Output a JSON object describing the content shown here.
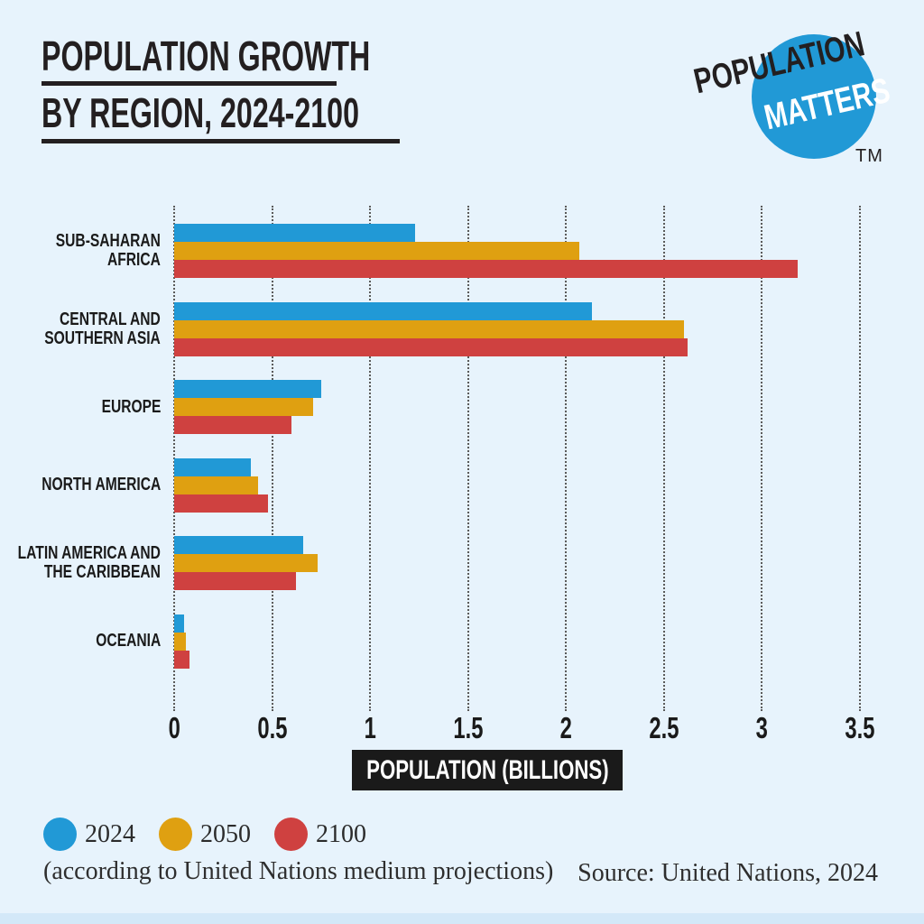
{
  "colors": {
    "page_background": "#e7f3fc",
    "bottom_strip": "#d3e8f8",
    "text_black": "#231f20",
    "gridline": "#5a5a5a",
    "xlabel_box_bg": "#1a1a1a",
    "xlabel_box_fg": "#ffffff"
  },
  "title": {
    "line1": "POPULATION GROWTH",
    "line2": "BY REGION, 2024-2100"
  },
  "logo": {
    "word1": "POPULATION",
    "word2": "MATTERS",
    "tm": "TM",
    "circle_color": "#2199d6",
    "word1_color": "#231f20",
    "word2_color": "#ffffff"
  },
  "chart_data": {
    "type": "bar",
    "orientation": "horizontal",
    "title": "POPULATION GROWTH BY REGION, 2024-2100",
    "xlabel": "POPULATION (BILLIONS)",
    "xlim": [
      0,
      3.5
    ],
    "xticks": [
      "0",
      "0.5",
      "1",
      "1.5",
      "2",
      "2.5",
      "3",
      "3.5"
    ],
    "grid": "vertical-dotted",
    "legend_position": "bottom-left",
    "categories": [
      "SUB-SAHARAN AFRICA",
      "CENTRAL AND SOUTHERN ASIA",
      "EUROPE",
      "NORTH AMERICA",
      "LATIN AMERICA AND THE CARIBBEAN",
      "OCEANIA"
    ],
    "category_lines": [
      [
        "SUB-SAHARAN",
        "AFRICA"
      ],
      [
        "CENTRAL AND",
        "SOUTHERN ASIA"
      ],
      [
        "EUROPE"
      ],
      [
        "NORTH AMERICA"
      ],
      [
        "LATIN AMERICA AND",
        "THE CARIBBEAN"
      ],
      [
        "OCEANIA"
      ]
    ],
    "series": [
      {
        "name": "2024",
        "color": "#2199d6",
        "values": [
          1.23,
          2.13,
          0.75,
          0.39,
          0.66,
          0.05
        ]
      },
      {
        "name": "2050",
        "color": "#dfa011",
        "values": [
          2.07,
          2.6,
          0.71,
          0.43,
          0.73,
          0.06
        ]
      },
      {
        "name": "2100",
        "color": "#cf4140",
        "values": [
          3.18,
          2.62,
          0.6,
          0.48,
          0.62,
          0.08
        ]
      }
    ]
  },
  "legend": {
    "items": [
      {
        "label": "2024",
        "color": "#2199d6"
      },
      {
        "label": "2050",
        "color": "#dfa011"
      },
      {
        "label": "2100",
        "color": "#cf4140"
      }
    ],
    "note": "(according to United Nations medium projections)"
  },
  "source": "Source: United Nations, 2024"
}
